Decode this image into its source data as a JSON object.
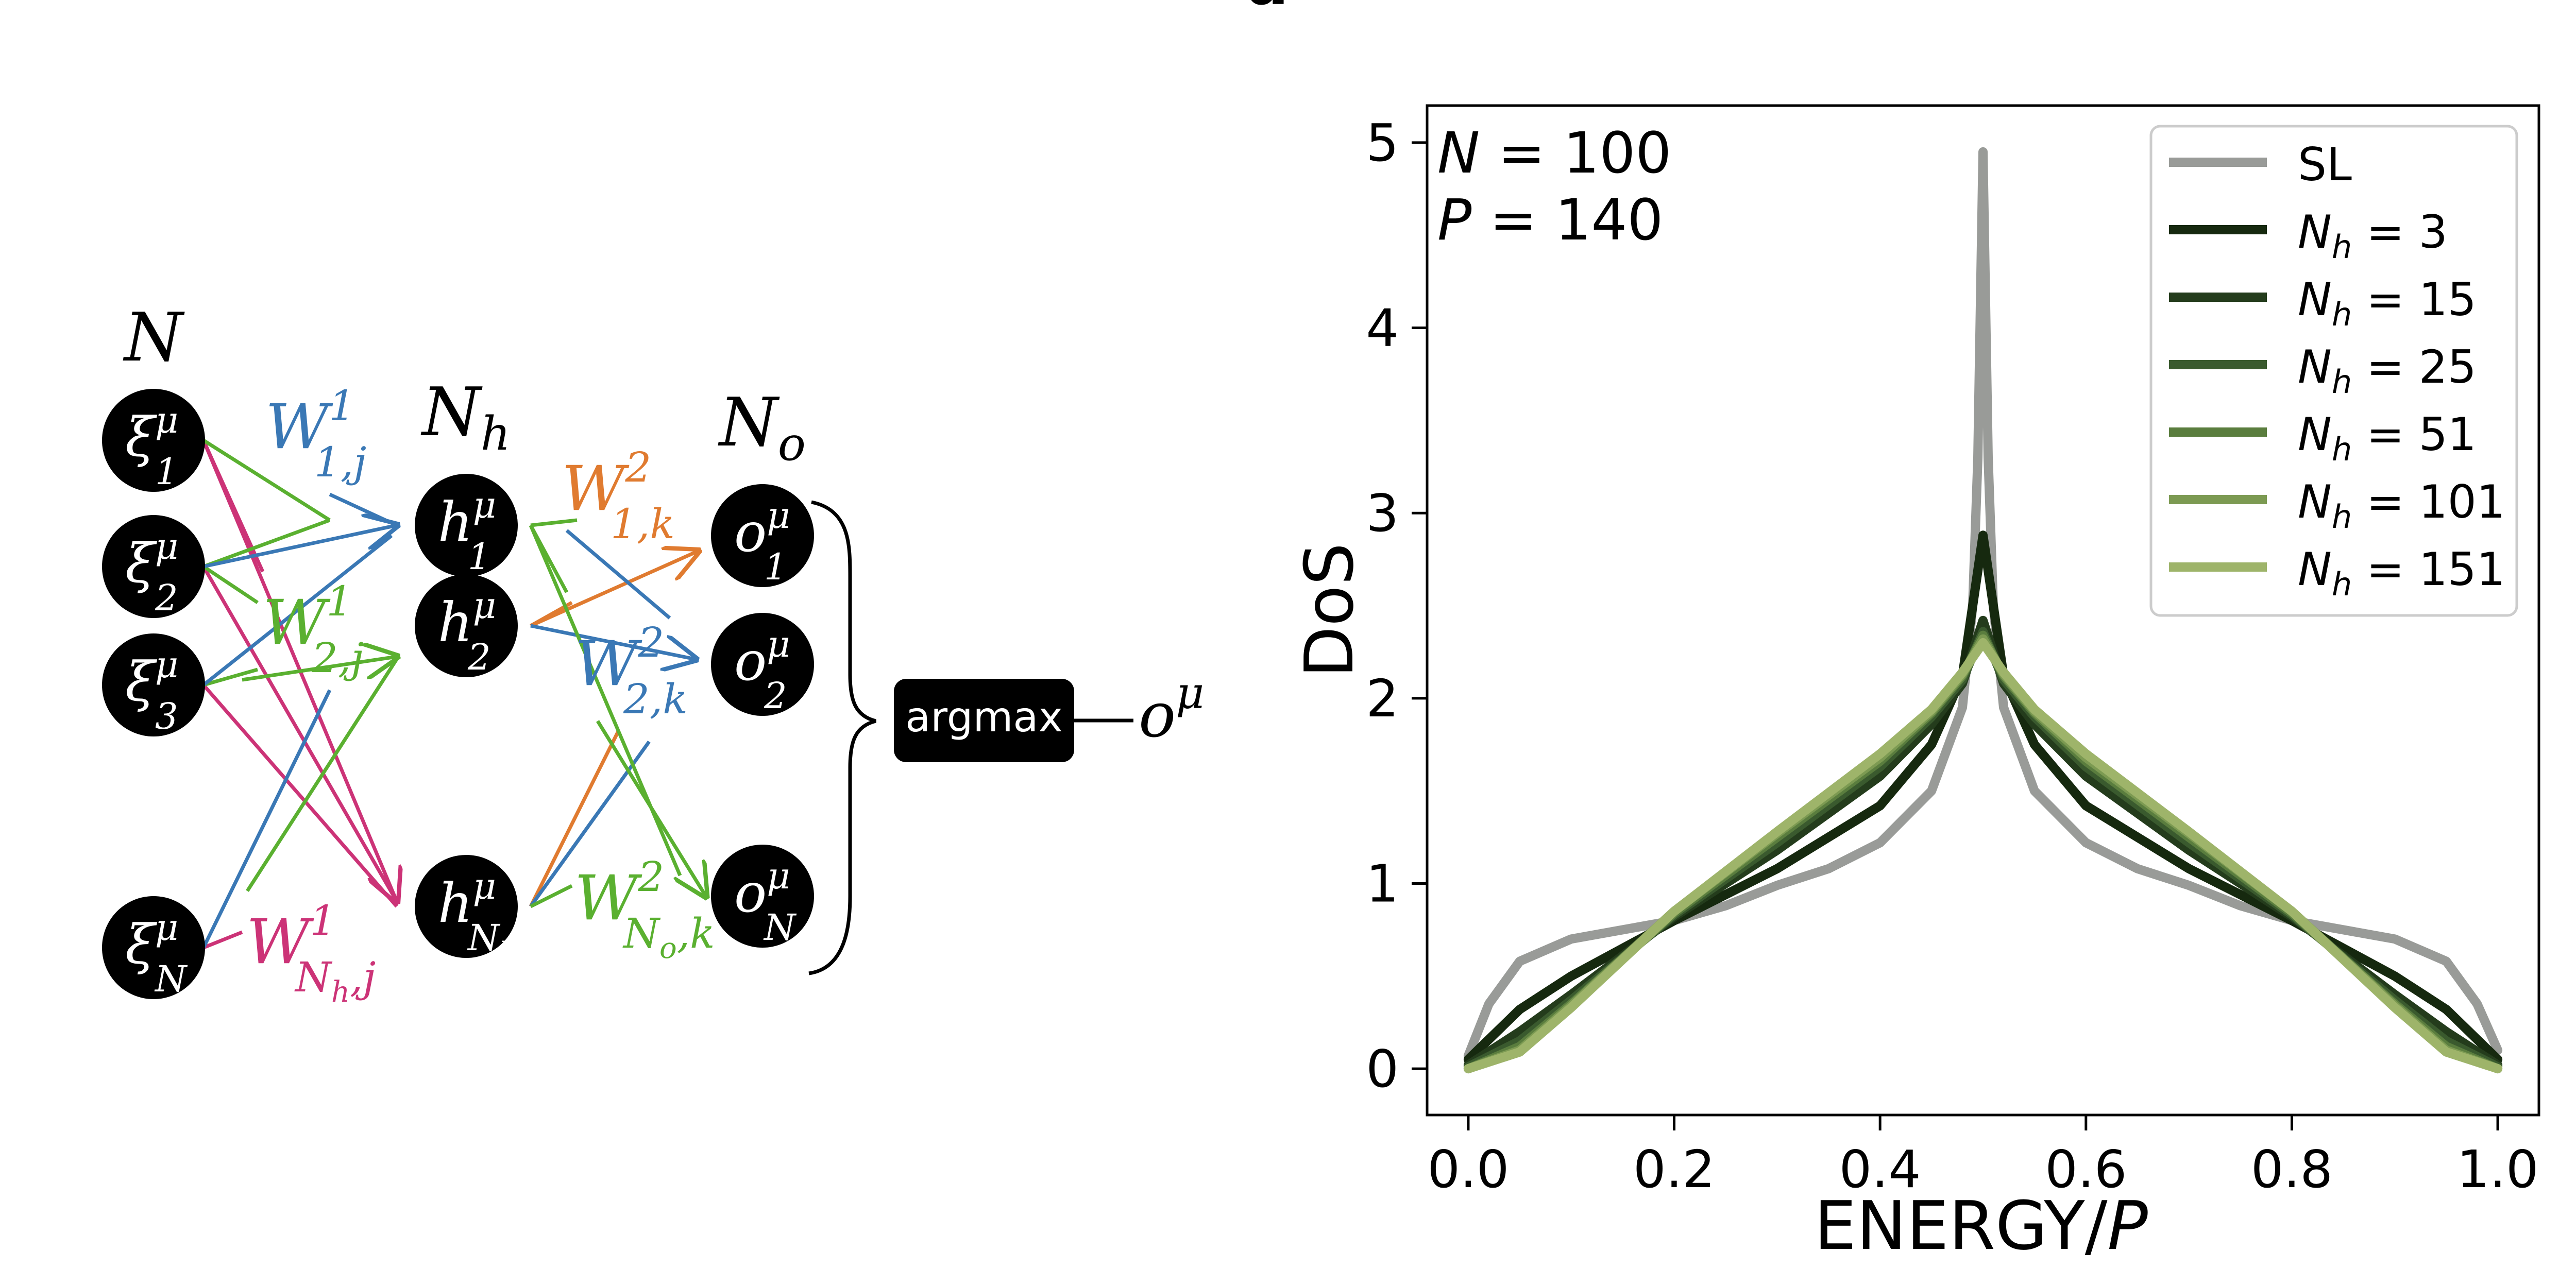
{
  "panel_label": "a",
  "diagram": {
    "layer_labels": {
      "input": "N",
      "hidden": "N_h",
      "output": "N_o"
    },
    "input_nodes": [
      {
        "base": "ξ",
        "sup": "μ",
        "sub": "1"
      },
      {
        "base": "ξ",
        "sup": "μ",
        "sub": "2"
      },
      {
        "base": "ξ",
        "sup": "μ",
        "sub": "3"
      },
      {
        "base": "ξ",
        "sup": "μ",
        "sub": "N"
      }
    ],
    "hidden_nodes": [
      {
        "base": "h",
        "sup": "μ",
        "sub": "1"
      },
      {
        "base": "h",
        "sup": "μ",
        "sub": "2"
      },
      {
        "base": "h",
        "sup": "μ",
        "sub": "N_h"
      }
    ],
    "output_nodes": [
      {
        "base": "o",
        "sup": "μ",
        "sub": "1"
      },
      {
        "base": "o",
        "sup": "μ",
        "sub": "2"
      },
      {
        "base": "o",
        "sup": "μ",
        "sub": "N_o"
      }
    ],
    "weights_layer1": [
      {
        "base": "W",
        "sup": "1",
        "sub": "1,j",
        "color": "#3a78b5"
      },
      {
        "base": "W",
        "sup": "1",
        "sub": "2,j",
        "color": "#5ab030"
      },
      {
        "base": "W",
        "sup": "1",
        "sub": "N_h,j",
        "color": "#cc3377"
      }
    ],
    "weights_layer2": [
      {
        "base": "W",
        "sup": "2",
        "sub": "1,k",
        "color": "#e07b30"
      },
      {
        "base": "W",
        "sup": "2",
        "sub": "2,k",
        "color": "#3a78b5"
      },
      {
        "base": "W",
        "sup": "2",
        "sub": "N_o,k",
        "color": "#5ab030"
      }
    ],
    "argmax_label": "argmax",
    "final_output": {
      "base": "o",
      "sup": "μ"
    },
    "colors": {
      "node": "#000000",
      "blue": "#3a78b5",
      "green": "#5ab030",
      "magenta": "#cc3377",
      "orange": "#e07b30"
    }
  },
  "chart_data": {
    "type": "line",
    "title": "",
    "xlabel": "ENERGY/P",
    "ylabel": "DoS",
    "xlim": [
      -0.04,
      1.04
    ],
    "ylim": [
      -0.25,
      5.2
    ],
    "xticks": [
      0.0,
      0.2,
      0.4,
      0.6,
      0.8,
      1.0
    ],
    "xtick_labels": [
      "0.0",
      "0.2",
      "0.4",
      "0.6",
      "0.8",
      "1.0"
    ],
    "yticks": [
      0,
      1,
      2,
      3,
      4,
      5
    ],
    "ytick_labels": [
      "0",
      "1",
      "2",
      "3",
      "4",
      "5"
    ],
    "grid": false,
    "legend_position": "top-right",
    "annotations": [
      "N = 100",
      "P = 140"
    ],
    "series": [
      {
        "name": "SL",
        "color": "#999b98",
        "x": [
          0.0,
          0.02,
          0.05,
          0.1,
          0.15,
          0.2,
          0.25,
          0.3,
          0.35,
          0.4,
          0.45,
          0.48,
          0.49,
          0.495,
          0.5,
          0.505,
          0.51,
          0.52,
          0.55,
          0.6,
          0.65,
          0.7,
          0.75,
          0.8,
          0.85,
          0.9,
          0.95,
          0.98,
          1.0
        ],
        "y": [
          0.07,
          0.35,
          0.58,
          0.7,
          0.75,
          0.8,
          0.88,
          0.99,
          1.08,
          1.22,
          1.5,
          1.95,
          2.5,
          3.3,
          4.95,
          3.3,
          2.5,
          1.95,
          1.5,
          1.22,
          1.08,
          0.99,
          0.88,
          0.8,
          0.75,
          0.7,
          0.58,
          0.35,
          0.1
        ]
      },
      {
        "name": "N_h = 3",
        "color": "#16290f",
        "x": [
          0.0,
          0.05,
          0.1,
          0.2,
          0.3,
          0.4,
          0.45,
          0.48,
          0.5,
          0.52,
          0.55,
          0.6,
          0.7,
          0.8,
          0.9,
          0.95,
          1.0
        ],
        "y": [
          0.05,
          0.32,
          0.5,
          0.8,
          1.08,
          1.42,
          1.75,
          2.12,
          2.88,
          2.12,
          1.75,
          1.42,
          1.08,
          0.8,
          0.5,
          0.32,
          0.05
        ]
      },
      {
        "name": "N_h = 15",
        "color": "#243c1c",
        "x": [
          0.0,
          0.05,
          0.1,
          0.2,
          0.3,
          0.4,
          0.45,
          0.48,
          0.5,
          0.52,
          0.55,
          0.6,
          0.7,
          0.8,
          0.9,
          0.95,
          1.0
        ],
        "y": [
          0.02,
          0.2,
          0.4,
          0.82,
          1.18,
          1.58,
          1.86,
          2.08,
          2.42,
          2.08,
          1.86,
          1.58,
          1.18,
          0.82,
          0.4,
          0.2,
          0.02
        ]
      },
      {
        "name": "N_h = 25",
        "color": "#3a5a2e",
        "x": [
          0.0,
          0.05,
          0.1,
          0.2,
          0.3,
          0.4,
          0.45,
          0.48,
          0.5,
          0.52,
          0.55,
          0.6,
          0.7,
          0.8,
          0.9,
          0.95,
          1.0
        ],
        "y": [
          0.01,
          0.15,
          0.37,
          0.83,
          1.22,
          1.63,
          1.9,
          2.1,
          2.36,
          2.1,
          1.9,
          1.63,
          1.22,
          0.83,
          0.37,
          0.15,
          0.01
        ]
      },
      {
        "name": "N_h = 51",
        "color": "#5a7d3e",
        "x": [
          0.0,
          0.05,
          0.1,
          0.2,
          0.3,
          0.4,
          0.45,
          0.48,
          0.5,
          0.52,
          0.55,
          0.6,
          0.7,
          0.8,
          0.9,
          0.95,
          1.0
        ],
        "y": [
          0.0,
          0.12,
          0.35,
          0.84,
          1.25,
          1.66,
          1.92,
          2.12,
          2.34,
          2.12,
          1.92,
          1.66,
          1.25,
          0.84,
          0.35,
          0.12,
          0.0
        ]
      },
      {
        "name": "N_h = 101",
        "color": "#7c9a52",
        "x": [
          0.0,
          0.05,
          0.1,
          0.2,
          0.3,
          0.4,
          0.45,
          0.48,
          0.5,
          0.52,
          0.55,
          0.6,
          0.7,
          0.8,
          0.9,
          0.95,
          1.0
        ],
        "y": [
          0.0,
          0.1,
          0.34,
          0.85,
          1.27,
          1.68,
          1.93,
          2.13,
          2.32,
          2.13,
          1.93,
          1.68,
          1.27,
          0.85,
          0.34,
          0.1,
          0.0
        ]
      },
      {
        "name": "N_h = 151",
        "color": "#9eb46a",
        "x": [
          0.0,
          0.05,
          0.1,
          0.2,
          0.3,
          0.4,
          0.45,
          0.48,
          0.5,
          0.52,
          0.55,
          0.6,
          0.7,
          0.8,
          0.9,
          0.95,
          1.0
        ],
        "y": [
          0.0,
          0.09,
          0.33,
          0.85,
          1.28,
          1.7,
          1.94,
          2.14,
          2.3,
          2.14,
          1.94,
          1.7,
          1.28,
          0.85,
          0.33,
          0.09,
          0.0
        ]
      }
    ]
  }
}
